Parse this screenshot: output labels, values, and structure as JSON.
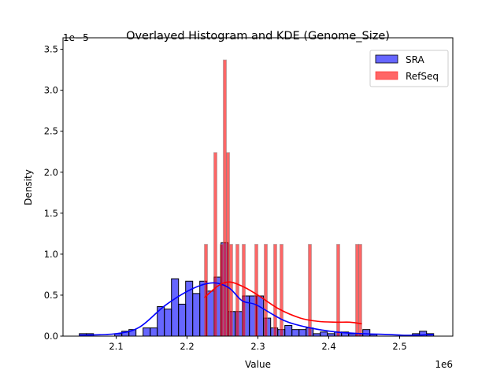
{
  "chart_data": {
    "type": "histogram+kde",
    "title": "Overlayed Histogram and KDE (Genome_Size)",
    "xlabel": "Value",
    "ylabel": "Density",
    "x_offset_label": "1e6",
    "y_offset_label": "1e−5",
    "xlim": [
      2.025,
      2.575
    ],
    "ylim": [
      0,
      3.64
    ],
    "x_ticks": [
      2.1,
      2.2,
      2.3,
      2.4,
      2.5
    ],
    "x_tick_labels": [
      "2.1",
      "2.2",
      "2.3",
      "2.4",
      "2.5"
    ],
    "y_ticks": [
      0,
      0.5,
      1.0,
      1.5,
      2.0,
      2.5,
      3.0,
      3.5
    ],
    "y_tick_labels": [
      "0.0",
      "0.5",
      "1.0",
      "1.5",
      "2.0",
      "2.5",
      "3.0",
      "3.5"
    ],
    "grid": false,
    "legend_position": "top-right",
    "series": [
      {
        "name": "SRA",
        "color": "#0000ff",
        "bin_start": 2.048,
        "bin_width": 0.01,
        "densities": [
          0.03,
          0.03,
          0,
          0,
          0,
          0.03,
          0.06,
          0.08,
          0,
          0.1,
          0.1,
          0.36,
          0.33,
          0.7,
          0.39,
          0.67,
          0.52,
          0.67,
          0.55,
          0.72,
          1.14,
          0.3,
          0.3,
          0.49,
          0.49,
          0.49,
          0.22,
          0.1,
          0.08,
          0.13,
          0.08,
          0.08,
          0.1,
          0.03,
          0.05,
          0.03,
          0.05,
          0.05,
          0.03,
          0.03,
          0.08,
          0.02,
          0,
          0,
          0,
          0,
          0,
          0.03,
          0.06,
          0.03
        ],
        "kde": [
          [
            2.048,
            0.01
          ],
          [
            2.1,
            0.03
          ],
          [
            2.133,
            0.11
          ],
          [
            2.17,
            0.38
          ],
          [
            2.208,
            0.58
          ],
          [
            2.237,
            0.65
          ],
          [
            2.259,
            0.59
          ],
          [
            2.278,
            0.43
          ],
          [
            2.298,
            0.38
          ],
          [
            2.337,
            0.19
          ],
          [
            2.374,
            0.1
          ],
          [
            2.411,
            0.05
          ],
          [
            2.448,
            0.03
          ],
          [
            2.485,
            0.02
          ],
          [
            2.511,
            0.01
          ],
          [
            2.548,
            0.02
          ]
        ]
      },
      {
        "name": "RefSeq",
        "color": "#ff0000",
        "bin_width": 0.00444,
        "bars": [
          [
            2.2267,
            1.12
          ],
          [
            2.24,
            2.24
          ],
          [
            2.2489,
            1.12
          ],
          [
            2.2533,
            3.37
          ],
          [
            2.2578,
            2.24
          ],
          [
            2.2622,
            1.12
          ],
          [
            2.2711,
            1.12
          ],
          [
            2.28,
            1.12
          ],
          [
            2.2978,
            1.12
          ],
          [
            2.3111,
            1.12
          ],
          [
            2.3244,
            1.12
          ],
          [
            2.3333,
            1.12
          ],
          [
            2.3733,
            1.12
          ],
          [
            2.4133,
            1.12
          ],
          [
            2.44,
            1.12
          ],
          [
            2.4444,
            1.12
          ]
        ],
        "kde": [
          [
            2.2245,
            0.47
          ],
          [
            2.245,
            0.62
          ],
          [
            2.261,
            0.66
          ],
          [
            2.28,
            0.6
          ],
          [
            2.3,
            0.5
          ],
          [
            2.33,
            0.33
          ],
          [
            2.36,
            0.22
          ],
          [
            2.385,
            0.18
          ],
          [
            2.41,
            0.17
          ],
          [
            2.43,
            0.17
          ],
          [
            2.4467,
            0.15
          ]
        ]
      }
    ]
  }
}
